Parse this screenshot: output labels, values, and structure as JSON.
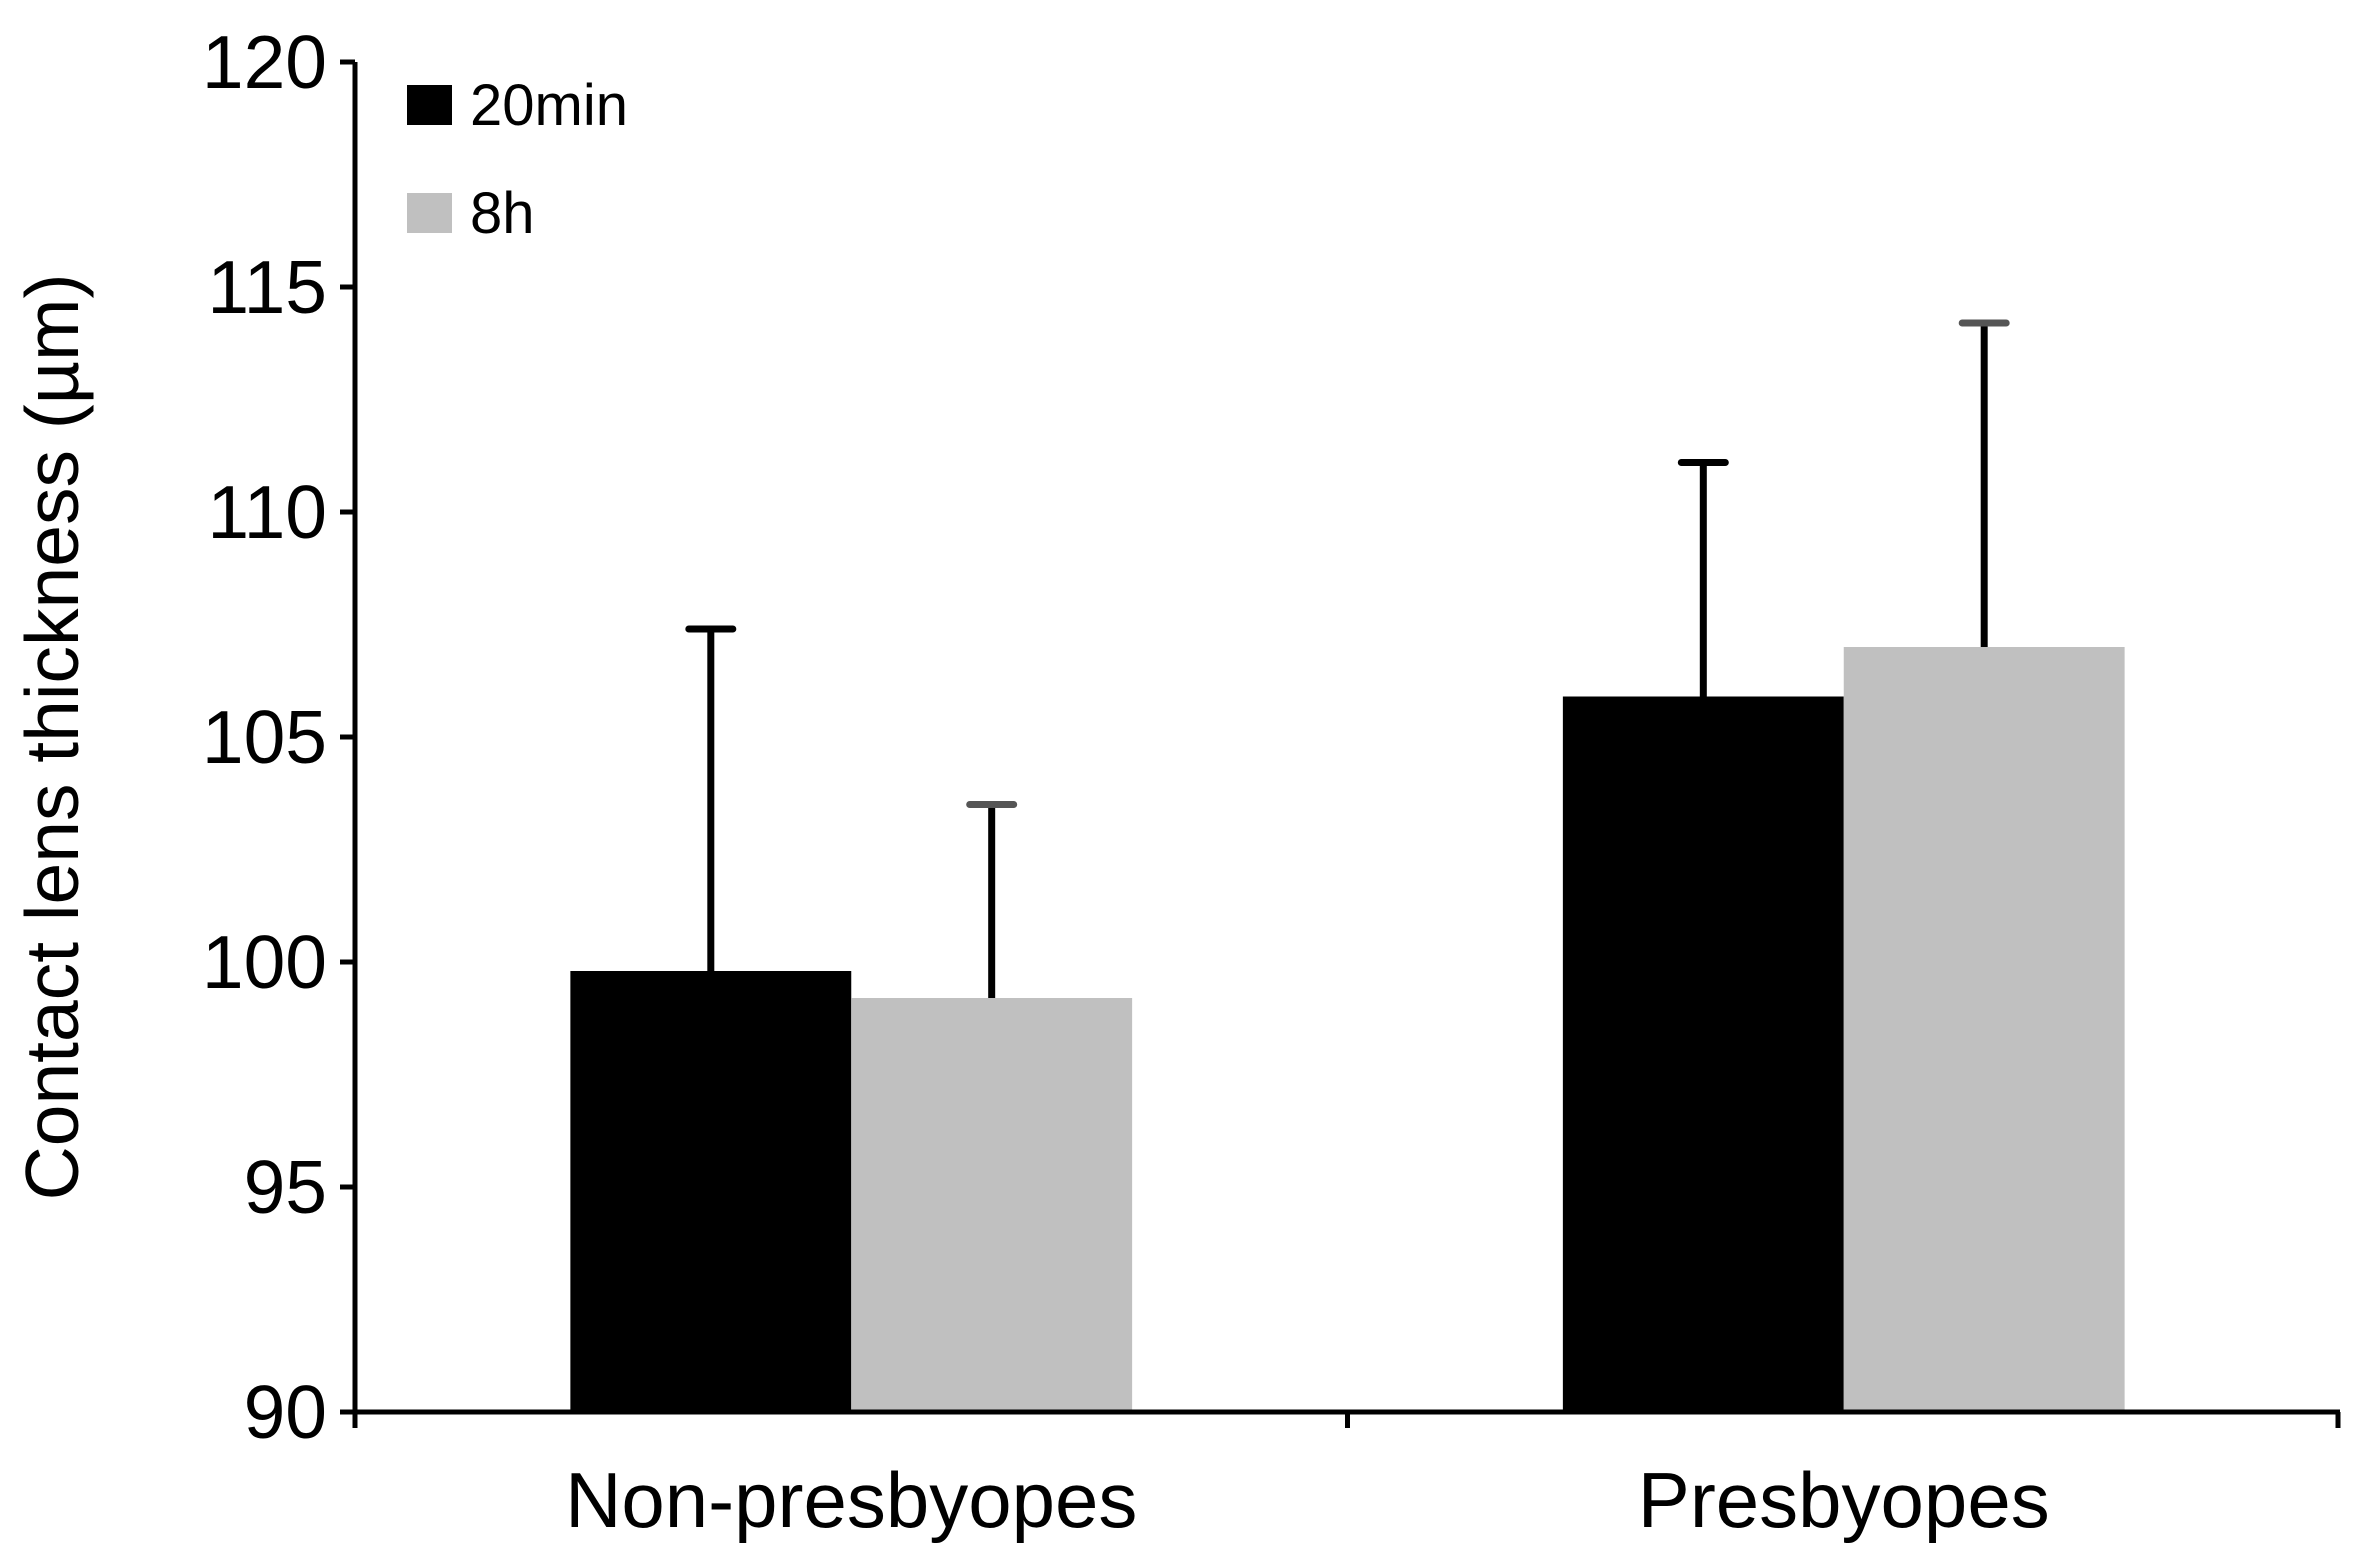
{
  "chart_data": {
    "type": "bar",
    "categories": [
      "Non-presbyopes",
      "Presbyopes"
    ],
    "series": [
      {
        "name": "20min",
        "color": "#000000",
        "values": [
          99.8,
          105.9
        ],
        "error": [
          7.6,
          5.2
        ]
      },
      {
        "name": "8h",
        "color": "#c0c0c0",
        "values": [
          99.2,
          107.0
        ],
        "error": [
          4.3,
          7.2
        ]
      }
    ],
    "ylabel": "Contact lens thickness (µm)",
    "xlabel": "",
    "ylim": [
      90,
      120
    ],
    "yticks": [
      90,
      95,
      100,
      105,
      110,
      115,
      120
    ],
    "grid": false,
    "legend_position": "top-left"
  }
}
